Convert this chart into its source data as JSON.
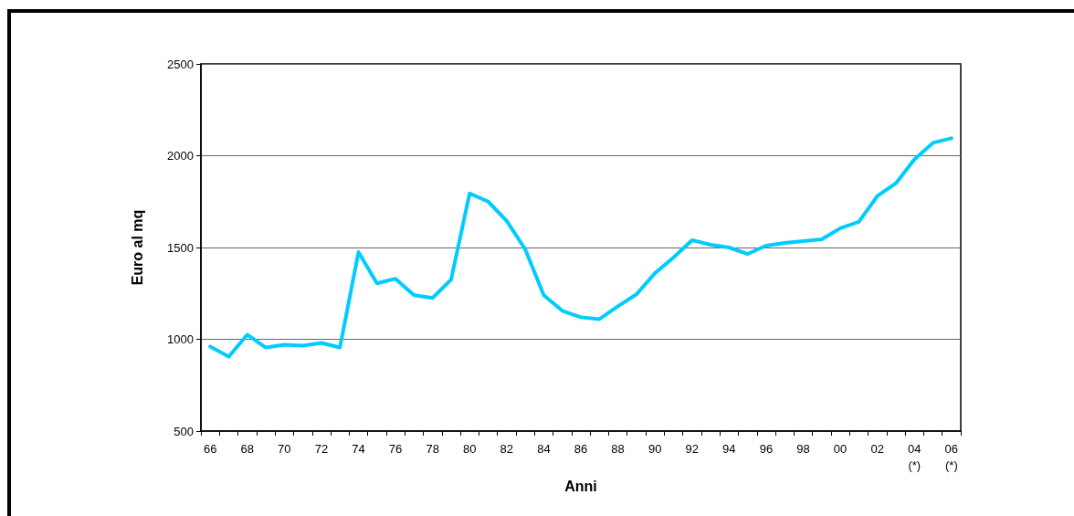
{
  "chart_data": {
    "type": "line",
    "xlabel": "Anni",
    "ylabel": "Euro al mq",
    "categories": [
      "66",
      null,
      "68",
      null,
      "70",
      null,
      "72",
      null,
      "74",
      null,
      "76",
      null,
      "78",
      null,
      "80",
      null,
      "82",
      null,
      "84",
      null,
      "86",
      null,
      "88",
      null,
      "90",
      null,
      "92",
      null,
      "94",
      null,
      "96",
      null,
      "98",
      null,
      "00",
      null,
      "02",
      null,
      "04\n(*)",
      null,
      "06\n(*)"
    ],
    "series": [
      {
        "color": "#00ccff",
        "values": [
          960,
          905,
          1025,
          955,
          970,
          965,
          980,
          955,
          1475,
          1305,
          1330,
          1240,
          1225,
          1325,
          1795,
          1750,
          1645,
          1490,
          1240,
          1155,
          1120,
          1110,
          1180,
          1245,
          1360,
          1445,
          1540,
          1515,
          1500,
          1465,
          1510,
          1525,
          1535,
          1545,
          1605,
          1640,
          1780,
          1850,
          1980,
          2070,
          2095
        ]
      }
    ],
    "ylim": [
      500,
      2500
    ],
    "yticks": [
      500,
      1000,
      1500,
      2000,
      2500
    ],
    "grid": "y",
    "marker": "none",
    "line_style": "solid"
  }
}
